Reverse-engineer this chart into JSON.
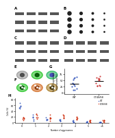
{
  "background": "#ffffff",
  "wb_bg": "#b8b8b8",
  "wb_band_dark": "#383838",
  "wb_band_light": "#888888",
  "dot_bg": "#e8e8e8",
  "confocal_bg": "#000000",
  "G_ylabel": "Cells w/ fragmented\nmitochondria (%)",
  "G_xlabels": [
    "WT",
    "C74S/68"
  ],
  "G_WT_color": "#3355bb",
  "G_CT_color": "#cc3333",
  "H_ylabel": "Cells (%)",
  "H_xlabel": "Number of aggresomes",
  "H_xlabels": [
    "0",
    "1",
    "2",
    "3",
    "4",
    "5",
    ">5"
  ],
  "H_WT_color": "#3355bb",
  "H_C74S_color": "#cc2200",
  "panel_bg": "#f0f0f0"
}
